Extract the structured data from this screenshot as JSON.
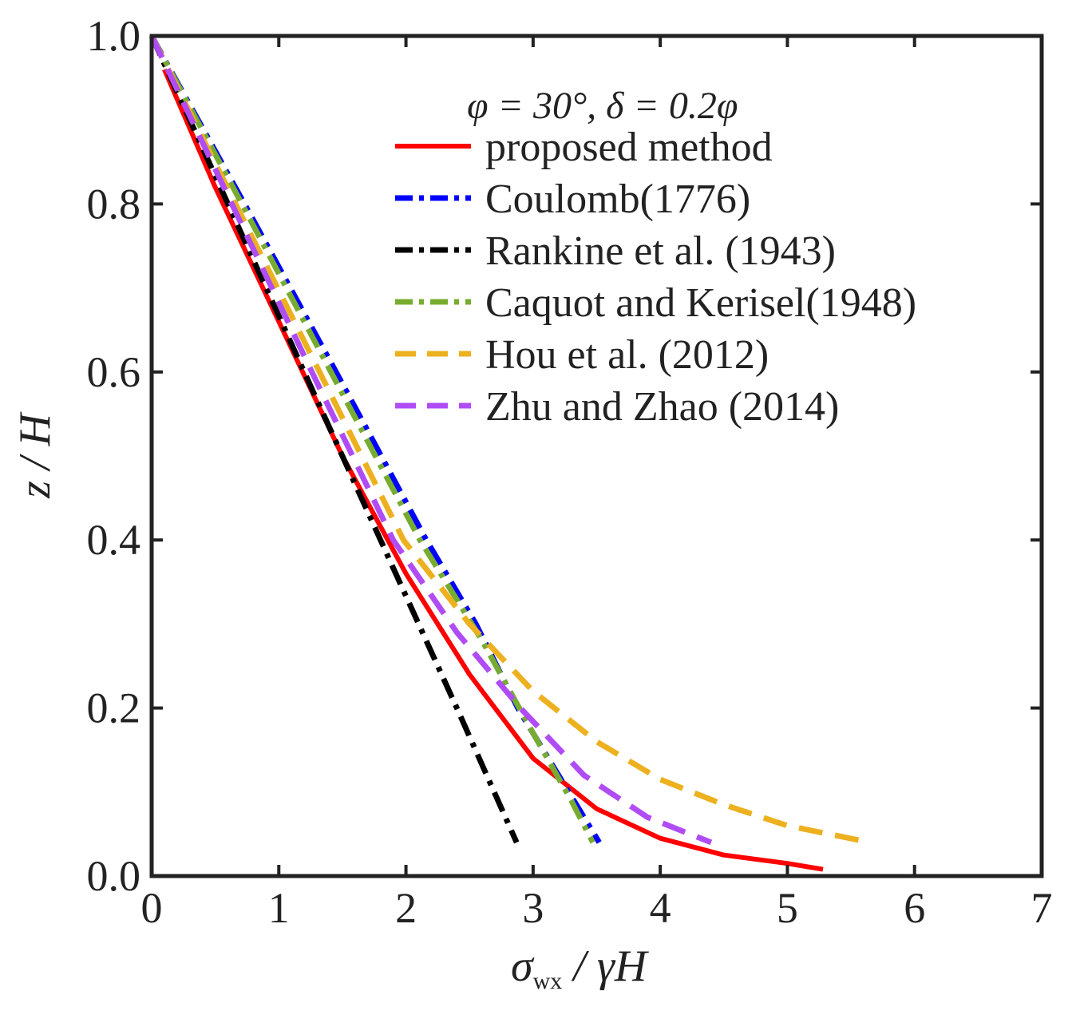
{
  "chart_data": {
    "type": "line",
    "title": "",
    "xlabel": "σwx / γH",
    "xlabel_parts": {
      "main": "σ",
      "sub": "wx",
      "rest": "/ γH"
    },
    "ylabel": "z / H",
    "xlim": [
      0,
      7
    ],
    "ylim": [
      0,
      1
    ],
    "xticks": [
      0,
      1,
      2,
      3,
      4,
      5,
      6,
      7
    ],
    "xtick_labels": [
      "0",
      "1",
      "2",
      "3",
      "4",
      "5",
      "6",
      "7"
    ],
    "yticks": [
      0,
      0.2,
      0.4,
      0.6,
      0.8,
      1.0
    ],
    "ytick_labels": [
      "0.0",
      "0.2",
      "0.4",
      "0.6",
      "0.8",
      "1.0"
    ],
    "grid": false,
    "legend_title": "φ = 30°, δ = 0.2φ",
    "legend_position": "top-right",
    "series": [
      {
        "name": "proposed method",
        "color": "#ff0000",
        "style": "solid",
        "points": [
          [
            0.1,
            0.96
          ],
          [
            0.5,
            0.82
          ],
          [
            1.0,
            0.66
          ],
          [
            1.5,
            0.5
          ],
          [
            2.0,
            0.36
          ],
          [
            2.5,
            0.24
          ],
          [
            3.0,
            0.14
          ],
          [
            3.5,
            0.08
          ],
          [
            4.0,
            0.045
          ],
          [
            4.5,
            0.025
          ],
          [
            5.0,
            0.015
          ],
          [
            5.28,
            0.008
          ]
        ]
      },
      {
        "name": "Coulomb(1776)",
        "color": "#0000ff",
        "style": "dashdot",
        "points": [
          [
            0.0,
            1.0
          ],
          [
            0.73,
            0.8
          ],
          [
            1.45,
            0.6
          ],
          [
            2.16,
            0.4
          ],
          [
            2.55,
            0.3
          ],
          [
            2.88,
            0.2
          ],
          [
            3.2,
            0.12
          ],
          [
            3.52,
            0.04
          ]
        ]
      },
      {
        "name": "Rankine et al. (1943)",
        "color": "#000000",
        "style": "dashdot",
        "points": [
          [
            0.0,
            1.0
          ],
          [
            0.6,
            0.8
          ],
          [
            1.2,
            0.6
          ],
          [
            1.8,
            0.4
          ],
          [
            2.4,
            0.2
          ],
          [
            2.87,
            0.04
          ]
        ]
      },
      {
        "name": "Caquot and Kerisel(1948)",
        "color": "#77ac30",
        "style": "dashdot",
        "points": [
          [
            0.0,
            1.0
          ],
          [
            0.71,
            0.8
          ],
          [
            1.41,
            0.6
          ],
          [
            2.11,
            0.4
          ],
          [
            2.6,
            0.28
          ],
          [
            3.0,
            0.17
          ],
          [
            3.3,
            0.09
          ],
          [
            3.47,
            0.04
          ]
        ]
      },
      {
        "name": "Hou et al. (2012)",
        "color": "#edb120",
        "style": "dashed",
        "points": [
          [
            0.0,
            1.0
          ],
          [
            0.66,
            0.8
          ],
          [
            1.32,
            0.6
          ],
          [
            1.98,
            0.4
          ],
          [
            2.5,
            0.3
          ],
          [
            3.0,
            0.22
          ],
          [
            3.5,
            0.16
          ],
          [
            4.0,
            0.115
          ],
          [
            4.5,
            0.085
          ],
          [
            5.0,
            0.06
          ],
          [
            5.65,
            0.04
          ]
        ]
      },
      {
        "name": "Zhu and Zhao (2014)",
        "color": "#b04cf5",
        "style": "dashed",
        "points": [
          [
            0.0,
            1.0
          ],
          [
            0.63,
            0.8
          ],
          [
            1.26,
            0.6
          ],
          [
            1.9,
            0.4
          ],
          [
            2.4,
            0.29
          ],
          [
            2.9,
            0.2
          ],
          [
            3.4,
            0.12
          ],
          [
            3.9,
            0.07
          ],
          [
            4.4,
            0.04
          ]
        ]
      }
    ]
  }
}
